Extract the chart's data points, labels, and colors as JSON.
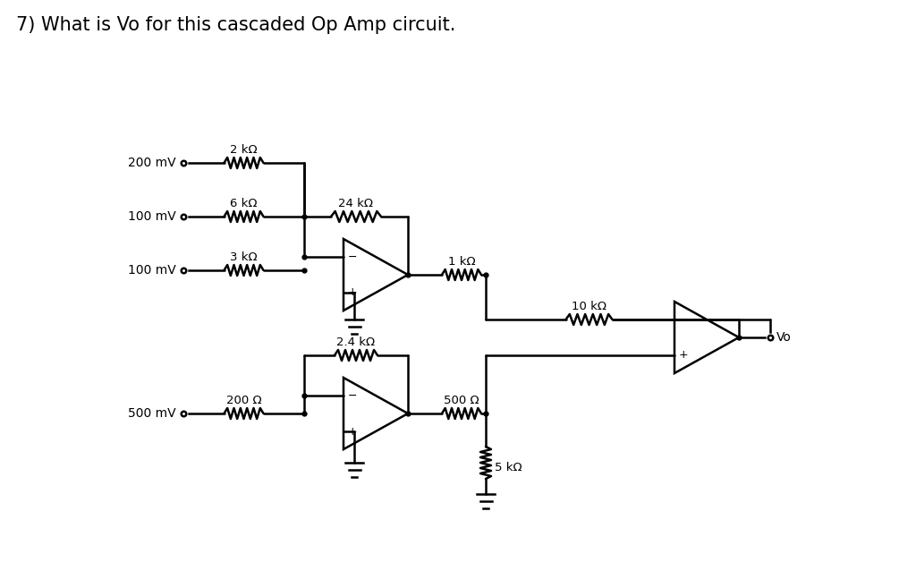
{
  "title": "7) What is Vo for this cascaded Op Amp circuit.",
  "title_fontsize": 15,
  "bg_color": "#ffffff",
  "line_color": "#000000",
  "text_color": "#000000",
  "fig_width": 10.24,
  "fig_height": 6.57,
  "dpi": 100,
  "labels": {
    "r2k": "2 kΩ",
    "r6k": "6 kΩ",
    "r3k": "3 kΩ",
    "r24k": "24 kΩ",
    "r1k": "1 kΩ",
    "r10k": "10 kΩ",
    "r24k2": "2.4 kΩ",
    "r200": "200 Ω",
    "r500": "500 Ω",
    "r5k": "5 kΩ",
    "v200": "200 mV",
    "v100a": "100 mV",
    "v100b": "100 mV",
    "v500": "500 mV",
    "vo": "Vo"
  }
}
